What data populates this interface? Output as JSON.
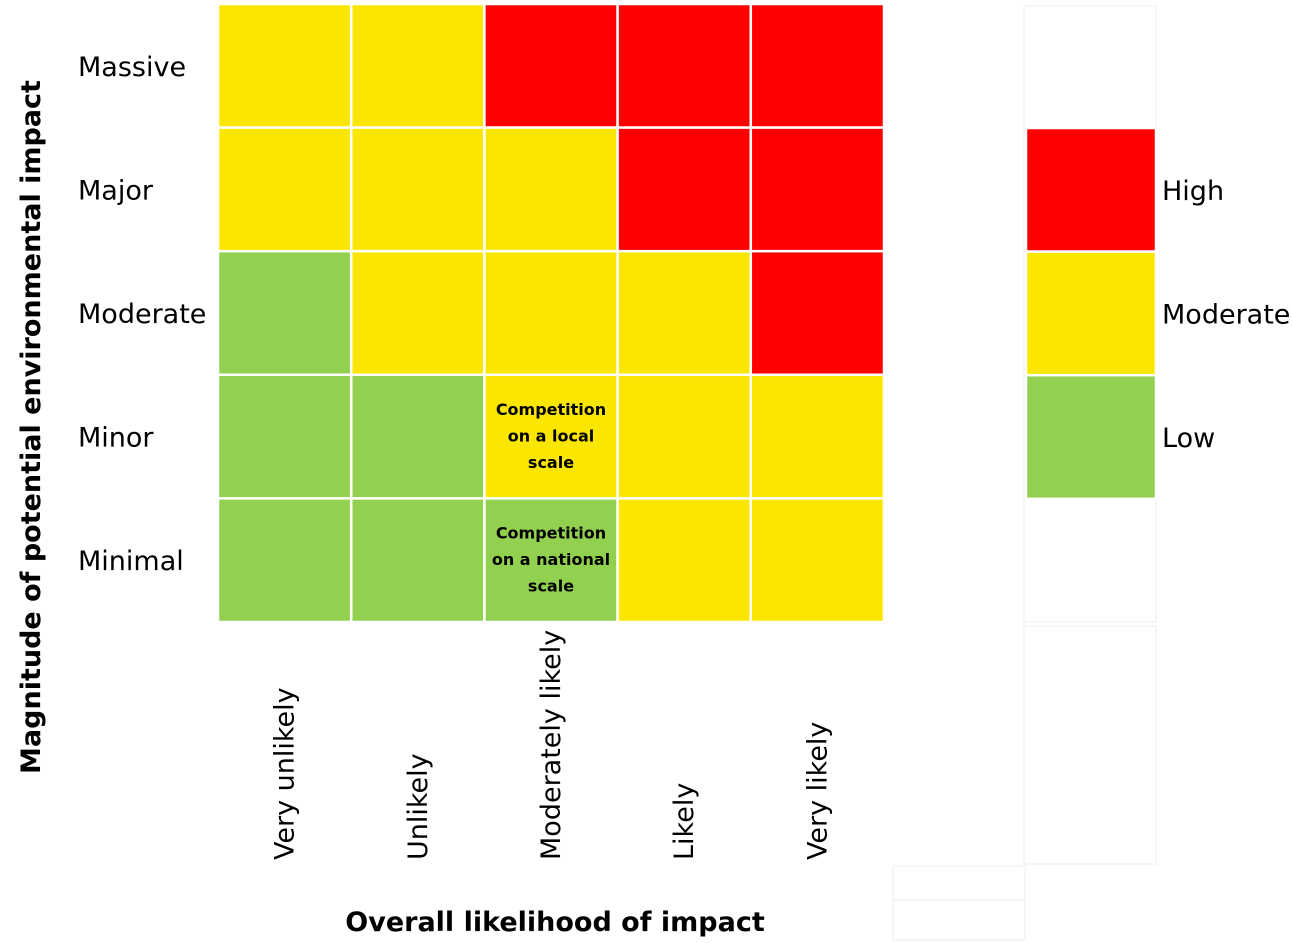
{
  "chart_data": {
    "type": "heatmap",
    "xlabel": "Overall likelihood of impact",
    "ylabel": "Magnitude of potential environmental impact",
    "columns": [
      "Very unlikely",
      "Unlikely",
      "Moderately likely",
      "Likely",
      "Very likely"
    ],
    "rows": [
      "Massive",
      "Major",
      "Moderate",
      "Minor",
      "Minimal"
    ],
    "cells": [
      [
        "Moderate",
        "Moderate",
        "High",
        "High",
        "High"
      ],
      [
        "Moderate",
        "Moderate",
        "Moderate",
        "High",
        "High"
      ],
      [
        "Low",
        "Moderate",
        "Moderate",
        "Moderate",
        "High"
      ],
      [
        "Low",
        "Low",
        "Moderate",
        "Moderate",
        "Moderate"
      ],
      [
        "Low",
        "Low",
        "Low",
        "Moderate",
        "Moderate"
      ]
    ],
    "annotations": [
      {
        "row": "Minor",
        "column": "Moderately likely",
        "lines": [
          "Competition",
          "on a local",
          "scale"
        ]
      },
      {
        "row": "Minimal",
        "column": "Moderately likely",
        "lines": [
          "Competition",
          "on a national",
          "scale"
        ]
      }
    ],
    "legend": [
      {
        "label": "High",
        "color": "#ff0000"
      },
      {
        "label": "Moderate",
        "color": "#fae600"
      },
      {
        "label": "Low",
        "color": "#92d050"
      }
    ],
    "legend_position": "right"
  }
}
